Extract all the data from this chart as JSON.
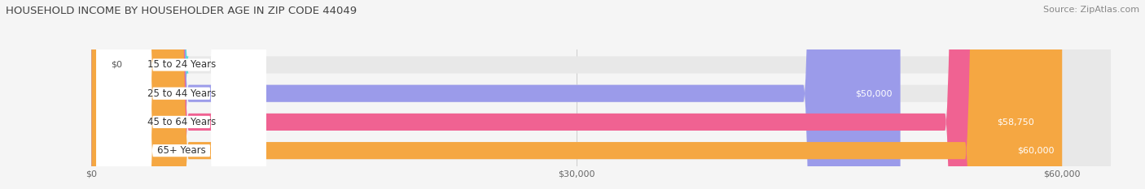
{
  "title": "HOUSEHOLD INCOME BY HOUSEHOLDER AGE IN ZIP CODE 44049",
  "source": "Source: ZipAtlas.com",
  "categories": [
    "15 to 24 Years",
    "25 to 44 Years",
    "45 to 64 Years",
    "65+ Years"
  ],
  "values": [
    0,
    50000,
    58750,
    60000
  ],
  "bar_colors": [
    "#5dd8d8",
    "#9b9bea",
    "#f06292",
    "#f5a742"
  ],
  "value_labels": [
    "$0",
    "$50,000",
    "$58,750",
    "$60,000"
  ],
  "x_ticks": [
    0,
    30000,
    60000
  ],
  "x_tick_labels": [
    "$0",
    "$30,000",
    "$60,000"
  ],
  "xlim_max": 63000,
  "bar_height": 0.6,
  "background_color": "#f5f5f5",
  "bar_bg_color": "#e8e8e8",
  "title_color": "#444444",
  "source_color": "#888888",
  "label_color": "#333333",
  "grid_color": "#cccccc"
}
